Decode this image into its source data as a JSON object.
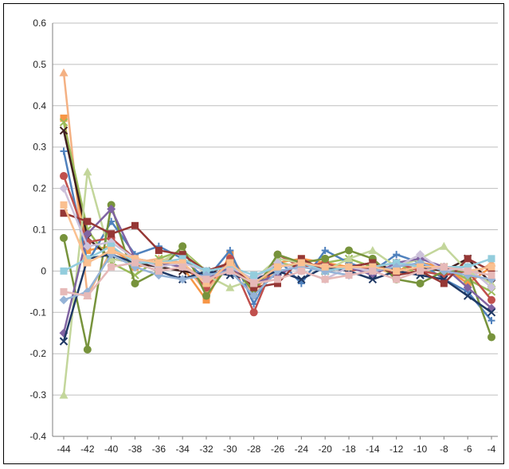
{
  "chart_data": {
    "type": "line",
    "title": "",
    "xlabel": "",
    "ylabel": "",
    "x": [
      "-44",
      "-42",
      "-40",
      "-38",
      "-36",
      "-34",
      "-32",
      "-30",
      "-28",
      "-26",
      "-24",
      "-20",
      "-18",
      "-14",
      "-12",
      "-10",
      "-8",
      "-6",
      "-4"
    ],
    "ylim": [
      -0.4,
      0.6
    ],
    "yticks": [
      "0.6",
      "0.5",
      "0.4",
      "0.3",
      "0.2",
      "0.1",
      "0",
      "-0.1",
      "-0.2",
      "-0.3",
      "-0.4"
    ],
    "grid": "horizontal",
    "legend": "none",
    "series": [
      {
        "color": "#f4b183",
        "marker": "triangle",
        "values": [
          0.48,
          -0.06,
          0.05,
          0.02,
          0.03,
          0.02,
          -0.05,
          0.03,
          -0.06,
          0.01,
          0.02,
          0.01,
          0.0,
          0.01,
          -0.01,
          0.01,
          0.0,
          -0.02,
          0.02
        ]
      },
      {
        "color": "#f79646",
        "marker": "square",
        "values": [
          0.37,
          0.05,
          0.06,
          0.01,
          0.02,
          0.01,
          -0.07,
          0.04,
          -0.05,
          0.02,
          0.03,
          0.02,
          0.01,
          0.02,
          0.0,
          0.02,
          0.01,
          -0.03,
          0.01
        ]
      },
      {
        "color": "#9bbb59",
        "marker": "x",
        "values": [
          0.36,
          0.1,
          0.02,
          -0.01,
          0.03,
          0.05,
          0.0,
          0.01,
          -0.04,
          0.02,
          0.01,
          0.02,
          0.03,
          0.01,
          0.02,
          -0.01,
          0.01,
          -0.02,
          -0.05
        ]
      },
      {
        "color": "#3f1f1f",
        "marker": "x",
        "values": [
          0.34,
          0.08,
          0.03,
          0.02,
          0.01,
          0.0,
          -0.01,
          0.02,
          -0.03,
          0.01,
          0.02,
          0.0,
          0.01,
          0.02,
          0.0,
          0.01,
          0.0,
          0.03,
          -0.03
        ]
      },
      {
        "color": "#4f81bd",
        "marker": "plus",
        "values": [
          0.29,
          0.02,
          0.12,
          0.04,
          0.06,
          0.03,
          -0.02,
          0.05,
          -0.08,
          0.03,
          -0.03,
          0.05,
          0.02,
          0.0,
          0.04,
          0.02,
          -0.02,
          -0.05,
          -0.12
        ]
      },
      {
        "color": "#c0504d",
        "marker": "circle",
        "values": [
          0.23,
          0.07,
          0.08,
          0.03,
          0.01,
          0.02,
          -0.04,
          0.03,
          -0.1,
          0.04,
          0.01,
          0.02,
          0.0,
          0.01,
          0.02,
          0.0,
          -0.01,
          0.0,
          -0.07
        ]
      },
      {
        "color": "#c3d69b",
        "marker": "triangle",
        "values": [
          -0.3,
          0.24,
          0.03,
          0.02,
          0.02,
          0.05,
          -0.01,
          -0.04,
          -0.02,
          0.03,
          0.02,
          0.0,
          0.03,
          0.05,
          0.01,
          0.03,
          0.06,
          0.0,
          -0.03
        ]
      },
      {
        "color": "#77933c",
        "marker": "circle",
        "values": [
          0.08,
          -0.19,
          0.16,
          -0.03,
          0.0,
          0.06,
          -0.06,
          0.02,
          -0.05,
          0.04,
          0.02,
          0.03,
          0.05,
          0.03,
          -0.02,
          -0.03,
          0.0,
          0.0,
          -0.16
        ]
      },
      {
        "color": "#8064a2",
        "marker": "diamond",
        "values": [
          -0.15,
          0.09,
          0.15,
          0.03,
          0.02,
          0.01,
          -0.02,
          0.01,
          -0.03,
          -0.01,
          0.02,
          0.0,
          0.01,
          -0.01,
          0.02,
          0.03,
          0.01,
          -0.04,
          -0.09
        ]
      },
      {
        "color": "#1f3864",
        "marker": "x",
        "values": [
          -0.17,
          0.03,
          0.04,
          0.02,
          0.0,
          -0.02,
          0.0,
          -0.01,
          -0.02,
          0.0,
          -0.02,
          0.01,
          0.0,
          -0.02,
          0.0,
          -0.01,
          -0.02,
          -0.06,
          -0.1
        ]
      },
      {
        "color": "#953735",
        "marker": "square",
        "values": [
          0.14,
          0.12,
          0.09,
          0.11,
          0.05,
          0.04,
          0.0,
          0.02,
          -0.04,
          -0.03,
          0.03,
          0.0,
          0.01,
          0.02,
          -0.01,
          0.0,
          -0.03,
          0.03,
          0.0
        ]
      },
      {
        "color": "#ccc1da",
        "marker": "diamond",
        "values": [
          0.2,
          0.06,
          0.07,
          0.03,
          0.01,
          0.02,
          0.0,
          0.01,
          -0.02,
          0.02,
          0.0,
          -0.02,
          0.01,
          0.0,
          0.01,
          0.04,
          0.0,
          0.01,
          -0.04
        ]
      },
      {
        "color": "#93cddd",
        "marker": "square",
        "values": [
          0.0,
          0.03,
          0.06,
          0.02,
          0.02,
          0.03,
          0.0,
          0.01,
          -0.01,
          0.01,
          0.02,
          0.0,
          0.01,
          0.01,
          0.02,
          0.01,
          0.01,
          0.01,
          0.03
        ]
      },
      {
        "color": "#95b3d7",
        "marker": "diamond",
        "values": [
          -0.07,
          -0.05,
          0.04,
          0.01,
          -0.01,
          -0.02,
          -0.01,
          0.0,
          -0.06,
          0.0,
          0.01,
          0.0,
          -0.01,
          0.0,
          0.01,
          0.02,
          0.0,
          -0.01,
          -0.02
        ]
      },
      {
        "color": "#fac090",
        "marker": "square",
        "values": [
          0.16,
          0.02,
          0.05,
          0.03,
          0.02,
          0.02,
          -0.03,
          0.02,
          -0.03,
          0.01,
          0.02,
          0.01,
          0.01,
          0.01,
          0.0,
          0.01,
          0.01,
          0.0,
          0.01
        ]
      },
      {
        "color": "#e6b9b8",
        "marker": "square",
        "values": [
          -0.05,
          -0.06,
          0.01,
          0.02,
          0.0,
          0.01,
          -0.02,
          0.0,
          -0.03,
          -0.02,
          0.0,
          -0.02,
          -0.01,
          0.0,
          -0.02,
          0.0,
          0.01,
          0.0,
          -0.01
        ]
      }
    ]
  }
}
